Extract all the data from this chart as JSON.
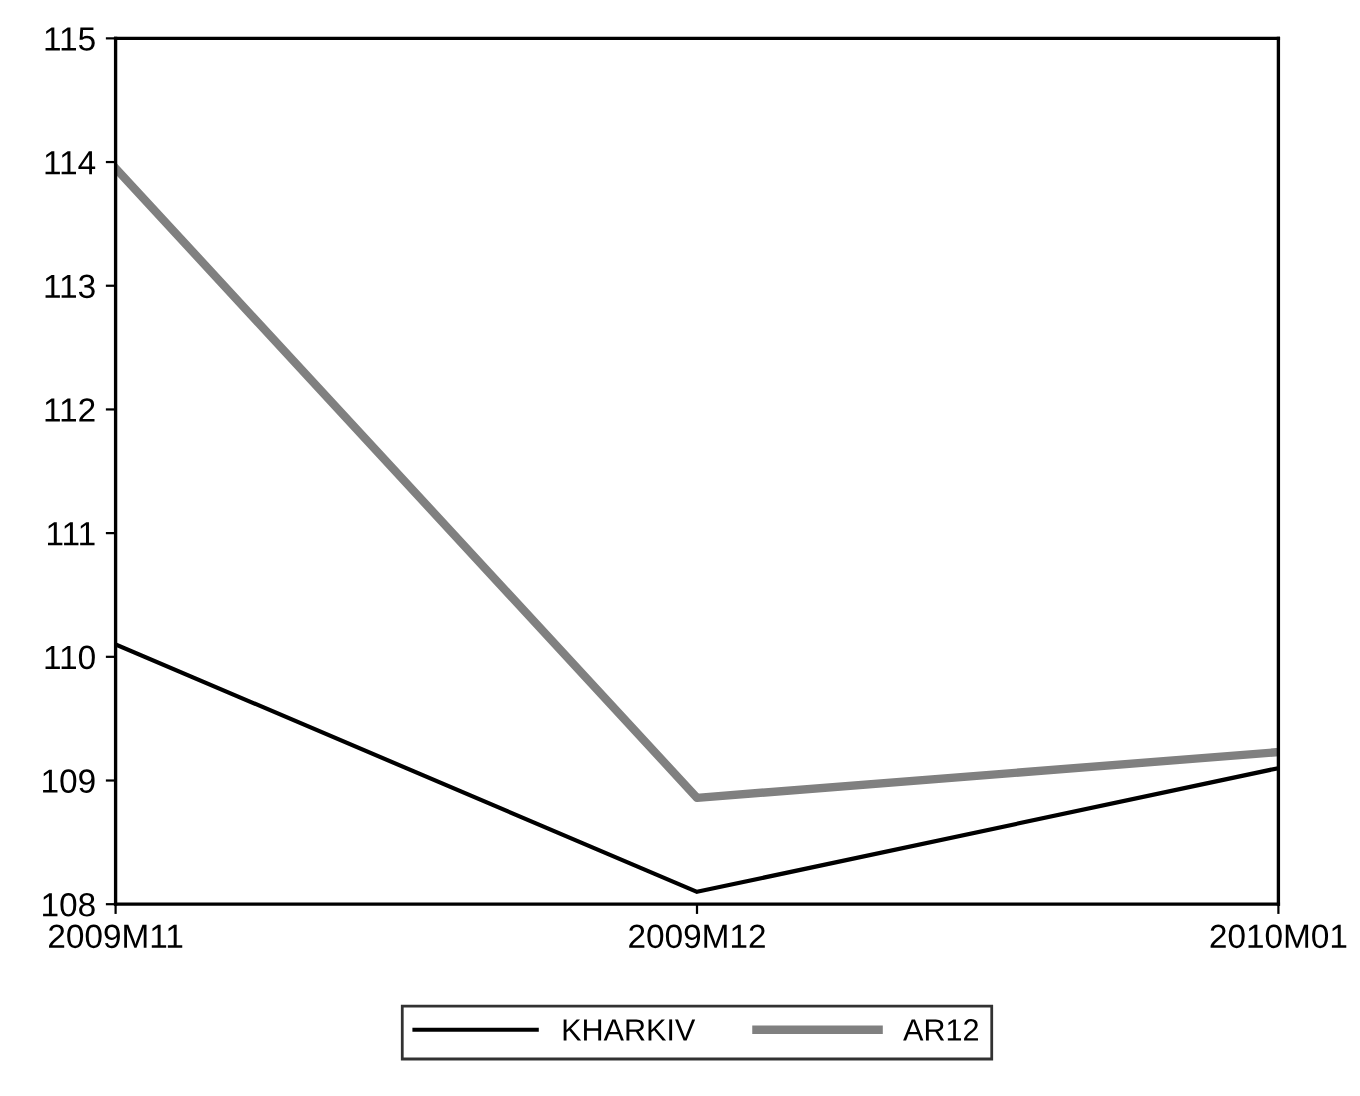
{
  "chart_data": {
    "type": "line",
    "categories": [
      "2009M11",
      "2009M12",
      "2010M01"
    ],
    "series": [
      {
        "name": "KHARKIV",
        "color": "#000000",
        "values": [
          110.1,
          108.1,
          109.1
        ]
      },
      {
        "name": "AR12",
        "color": "#808080",
        "values": [
          113.95,
          108.86,
          109.23
        ]
      }
    ],
    "ylim": [
      108,
      115
    ],
    "yticks": [
      108,
      109,
      110,
      111,
      112,
      113,
      114,
      115
    ],
    "grid": false,
    "legend": "bottom",
    "marker": "none",
    "line_style": "solid"
  }
}
